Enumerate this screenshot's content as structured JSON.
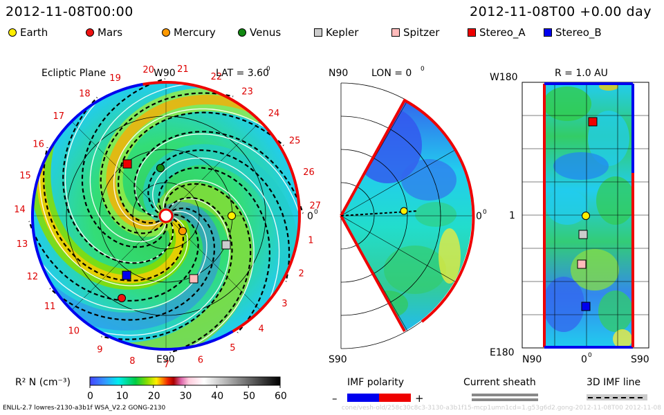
{
  "header": {
    "timestamp_left": "2012-11-08T00:00",
    "timestamp_right": "2012-11-08T00 +0.00 day"
  },
  "legend": [
    {
      "label": "Earth",
      "shape": "circle",
      "color": "#ffee00"
    },
    {
      "label": "Mars",
      "shape": "circle",
      "color": "#ee1111"
    },
    {
      "label": "Mercury",
      "shape": "circle",
      "color": "#ff9900"
    },
    {
      "label": "Venus",
      "shape": "circle",
      "color": "#118811"
    },
    {
      "label": "Kepler",
      "shape": "square",
      "color": "#cccccc"
    },
    {
      "label": "Spitzer",
      "shape": "square",
      "color": "#ffbbbb"
    },
    {
      "label": "Stereo_A",
      "shape": "square",
      "color": "#ee0000"
    },
    {
      "label": "Stereo_B",
      "shape": "square",
      "color": "#0000ee"
    }
  ],
  "ecliptic": {
    "title": "Ecliptic Plane",
    "top_label": "W90",
    "bottom_label": "E90",
    "right_label": "0",
    "lat_label": "LAT = 3.60",
    "lat_superscript": "0",
    "right_superscript": "0",
    "sector_numbers": [
      "1",
      "2",
      "3",
      "4",
      "5",
      "6",
      "7",
      "8",
      "9",
      "10",
      "11",
      "12",
      "13",
      "14",
      "15",
      "16",
      "17",
      "18",
      "19",
      "20",
      "21",
      "22",
      "23",
      "24",
      "25",
      "26",
      "27"
    ]
  },
  "meridional": {
    "top_label": "N90",
    "bottom_label": "S90",
    "lon_label": "LON = 0",
    "lon_superscript": "0",
    "right_label": "0",
    "right_superscript": "0"
  },
  "radial": {
    "title": "R = 1.0 AU",
    "top_left": "W180",
    "bottom_left": "E180",
    "middle_left": "1",
    "x_left": "N90",
    "x_mid": "0",
    "x_mid_superscript": "0",
    "x_right": "S90"
  },
  "colorbar": {
    "label": "R² N (cm⁻³)",
    "ticks": [
      "0",
      "10",
      "20",
      "30",
      "40",
      "50",
      "60"
    ],
    "min": 0,
    "max": 60
  },
  "imf": {
    "polarity_label": "IMF polarity",
    "minus": "–",
    "plus": "+",
    "minus_color": "#0000ee",
    "plus_color": "#ee0000",
    "current_sheath_label": "Current sheath",
    "imf_line_label": "3D IMF line"
  },
  "footer": {
    "left": "ENLIL-2.7 lowres-2130-a3b1f WSA_V2.2 GONG-2130",
    "right": "cone/vesh-old/258c30c8c3-3130-a3b1f15-mcp1umn1cd=1.g53g6d2.gong-2012-11-08T00    2012-11-08"
  }
}
